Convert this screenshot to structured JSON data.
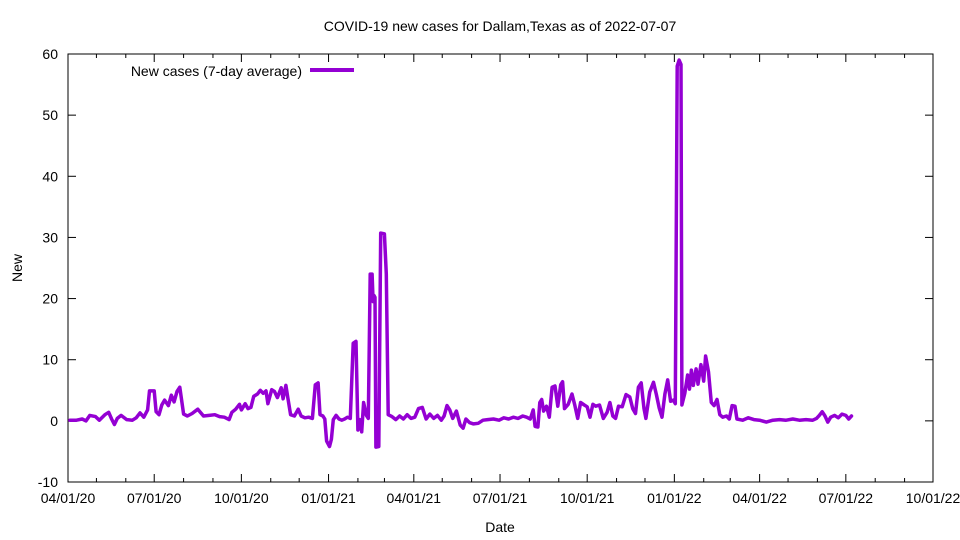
{
  "chart_data": {
    "type": "line",
    "title": "COVID-19 new cases for Dallam,Texas as of 2022-07-07",
    "xlabel": "Date",
    "ylabel": "New",
    "xlim": [
      "2020-04-01",
      "2022-10-01"
    ],
    "ylim": [
      -10,
      60
    ],
    "x_ticks": [
      {
        "date": "2020-04-01",
        "label": "04/01/20"
      },
      {
        "date": "2020-07-01",
        "label": "07/01/20"
      },
      {
        "date": "2020-10-01",
        "label": "10/01/20"
      },
      {
        "date": "2021-01-01",
        "label": "01/01/21"
      },
      {
        "date": "2021-04-01",
        "label": "04/01/21"
      },
      {
        "date": "2021-07-01",
        "label": "07/01/21"
      },
      {
        "date": "2021-10-01",
        "label": "10/01/21"
      },
      {
        "date": "2022-01-01",
        "label": "01/01/22"
      },
      {
        "date": "2022-04-01",
        "label": "04/01/22"
      },
      {
        "date": "2022-07-01",
        "label": "07/01/22"
      },
      {
        "date": "2022-10-01",
        "label": "10/01/22"
      }
    ],
    "y_ticks": [
      -10,
      0,
      10,
      20,
      30,
      40,
      50,
      60
    ],
    "grid": false,
    "legend_position": "top-left",
    "series": [
      {
        "name": "New cases (7-day average)",
        "color": "#9400d3",
        "points": [
          [
            "2020-04-03",
            0.1
          ],
          [
            "2020-04-10",
            0.1
          ],
          [
            "2020-04-16",
            0.3
          ],
          [
            "2020-04-20",
            0.0
          ],
          [
            "2020-04-24",
            0.9
          ],
          [
            "2020-04-30",
            0.7
          ],
          [
            "2020-05-04",
            0.1
          ],
          [
            "2020-05-10",
            1.0
          ],
          [
            "2020-05-14",
            1.4
          ],
          [
            "2020-05-17",
            0.3
          ],
          [
            "2020-05-20",
            -0.6
          ],
          [
            "2020-05-23",
            0.4
          ],
          [
            "2020-05-27",
            0.9
          ],
          [
            "2020-06-02",
            0.2
          ],
          [
            "2020-06-08",
            0.1
          ],
          [
            "2020-06-12",
            0.5
          ],
          [
            "2020-06-16",
            1.3
          ],
          [
            "2020-06-20",
            0.6
          ],
          [
            "2020-06-24",
            1.8
          ],
          [
            "2020-06-26",
            4.9
          ],
          [
            "2020-07-01",
            4.9
          ],
          [
            "2020-07-03",
            1.5
          ],
          [
            "2020-07-06",
            1.0
          ],
          [
            "2020-07-09",
            2.6
          ],
          [
            "2020-07-12",
            3.4
          ],
          [
            "2020-07-16",
            2.5
          ],
          [
            "2020-07-19",
            4.2
          ],
          [
            "2020-07-22",
            3.1
          ],
          [
            "2020-07-25",
            4.8
          ],
          [
            "2020-07-28",
            5.5
          ],
          [
            "2020-08-01",
            1.1
          ],
          [
            "2020-08-05",
            0.8
          ],
          [
            "2020-08-10",
            1.2
          ],
          [
            "2020-08-16",
            1.9
          ],
          [
            "2020-08-22",
            0.8
          ],
          [
            "2020-08-28",
            0.9
          ],
          [
            "2020-09-03",
            1.0
          ],
          [
            "2020-09-08",
            0.7
          ],
          [
            "2020-09-13",
            0.6
          ],
          [
            "2020-09-18",
            0.2
          ],
          [
            "2020-09-21",
            1.4
          ],
          [
            "2020-09-25",
            1.9
          ],
          [
            "2020-09-29",
            2.7
          ],
          [
            "2020-10-01",
            1.8
          ],
          [
            "2020-10-05",
            2.8
          ],
          [
            "2020-10-08",
            2.0
          ],
          [
            "2020-10-11",
            2.2
          ],
          [
            "2020-10-14",
            4.0
          ],
          [
            "2020-10-18",
            4.4
          ],
          [
            "2020-10-21",
            5.0
          ],
          [
            "2020-10-24",
            4.5
          ],
          [
            "2020-10-27",
            4.9
          ],
          [
            "2020-10-29",
            2.8
          ],
          [
            "2020-11-02",
            5.1
          ],
          [
            "2020-11-05",
            4.8
          ],
          [
            "2020-11-08",
            3.8
          ],
          [
            "2020-11-12",
            5.4
          ],
          [
            "2020-11-14",
            3.6
          ],
          [
            "2020-11-17",
            5.8
          ],
          [
            "2020-11-19",
            3.8
          ],
          [
            "2020-11-22",
            1.0
          ],
          [
            "2020-11-26",
            0.8
          ],
          [
            "2020-11-30",
            1.9
          ],
          [
            "2020-12-03",
            0.8
          ],
          [
            "2020-12-07",
            0.5
          ],
          [
            "2020-12-11",
            0.6
          ],
          [
            "2020-12-15",
            0.4
          ],
          [
            "2020-12-18",
            5.9
          ],
          [
            "2020-12-21",
            6.2
          ],
          [
            "2020-12-23",
            1.0
          ],
          [
            "2020-12-26",
            0.8
          ],
          [
            "2020-12-28",
            0.3
          ],
          [
            "2020-12-30",
            -3.3
          ],
          [
            "2021-01-02",
            -4.2
          ],
          [
            "2021-01-04",
            -3.0
          ],
          [
            "2021-01-06",
            0.2
          ],
          [
            "2021-01-09",
            0.9
          ],
          [
            "2021-01-12",
            0.3
          ],
          [
            "2021-01-15",
            0.1
          ],
          [
            "2021-01-18",
            0.3
          ],
          [
            "2021-01-21",
            0.6
          ],
          [
            "2021-01-24",
            0.4
          ],
          [
            "2021-01-27",
            12.7
          ],
          [
            "2021-01-30",
            13.0
          ],
          [
            "2021-02-01",
            -1.5
          ],
          [
            "2021-02-03",
            0.2
          ],
          [
            "2021-02-05",
            -1.8
          ],
          [
            "2021-02-07",
            3.0
          ],
          [
            "2021-02-10",
            0.9
          ],
          [
            "2021-02-12",
            0.4
          ],
          [
            "2021-02-14",
            24.0
          ],
          [
            "2021-02-16",
            24.0
          ],
          [
            "2021-02-17",
            19.5
          ],
          [
            "2021-02-18",
            20.5
          ],
          [
            "2021-02-19",
            20.2
          ],
          [
            "2021-02-20",
            -4.3
          ],
          [
            "2021-02-23",
            -4.2
          ],
          [
            "2021-02-25",
            30.7
          ],
          [
            "2021-03-01",
            30.6
          ],
          [
            "2021-03-03",
            24.0
          ],
          [
            "2021-03-05",
            1.0
          ],
          [
            "2021-03-09",
            0.7
          ],
          [
            "2021-03-13",
            0.2
          ],
          [
            "2021-03-17",
            0.8
          ],
          [
            "2021-03-21",
            0.3
          ],
          [
            "2021-03-25",
            1.0
          ],
          [
            "2021-03-29",
            0.4
          ],
          [
            "2021-04-02",
            0.6
          ],
          [
            "2021-04-06",
            2.0
          ],
          [
            "2021-04-10",
            2.2
          ],
          [
            "2021-04-14",
            0.3
          ],
          [
            "2021-04-18",
            1.1
          ],
          [
            "2021-04-22",
            0.4
          ],
          [
            "2021-04-26",
            0.9
          ],
          [
            "2021-04-30",
            0.1
          ],
          [
            "2021-05-03",
            0.8
          ],
          [
            "2021-05-06",
            2.5
          ],
          [
            "2021-05-09",
            1.8
          ],
          [
            "2021-05-12",
            0.4
          ],
          [
            "2021-05-16",
            1.6
          ],
          [
            "2021-05-20",
            -0.7
          ],
          [
            "2021-05-23",
            -1.2
          ],
          [
            "2021-05-26",
            0.3
          ],
          [
            "2021-05-30",
            -0.3
          ],
          [
            "2021-06-03",
            -0.5
          ],
          [
            "2021-06-08",
            -0.4
          ],
          [
            "2021-06-13",
            0.1
          ],
          [
            "2021-06-18",
            0.2
          ],
          [
            "2021-06-24",
            0.3
          ],
          [
            "2021-06-30",
            0.1
          ],
          [
            "2021-07-05",
            0.5
          ],
          [
            "2021-07-10",
            0.3
          ],
          [
            "2021-07-15",
            0.6
          ],
          [
            "2021-07-20",
            0.4
          ],
          [
            "2021-07-25",
            0.8
          ],
          [
            "2021-07-29",
            0.6
          ],
          [
            "2021-08-02",
            0.3
          ],
          [
            "2021-08-05",
            1.8
          ],
          [
            "2021-08-07",
            -0.9
          ],
          [
            "2021-08-10",
            -1.0
          ],
          [
            "2021-08-12",
            3.0
          ],
          [
            "2021-08-14",
            3.5
          ],
          [
            "2021-08-16",
            1.6
          ],
          [
            "2021-08-19",
            2.4
          ],
          [
            "2021-08-22",
            0.6
          ],
          [
            "2021-08-25",
            5.5
          ],
          [
            "2021-08-28",
            5.7
          ],
          [
            "2021-08-31",
            2.4
          ],
          [
            "2021-09-03",
            5.9
          ],
          [
            "2021-09-05",
            6.4
          ],
          [
            "2021-09-07",
            2.0
          ],
          [
            "2021-09-11",
            2.7
          ],
          [
            "2021-09-15",
            4.4
          ],
          [
            "2021-09-18",
            2.5
          ],
          [
            "2021-09-21",
            0.4
          ],
          [
            "2021-09-24",
            3.0
          ],
          [
            "2021-09-28",
            2.6
          ],
          [
            "2021-10-01",
            2.3
          ],
          [
            "2021-10-04",
            0.6
          ],
          [
            "2021-10-07",
            2.7
          ],
          [
            "2021-10-10",
            2.4
          ],
          [
            "2021-10-14",
            2.6
          ],
          [
            "2021-10-18",
            0.4
          ],
          [
            "2021-10-22",
            1.4
          ],
          [
            "2021-10-25",
            3.0
          ],
          [
            "2021-10-28",
            0.8
          ],
          [
            "2021-10-31",
            0.4
          ],
          [
            "2021-11-03",
            2.4
          ],
          [
            "2021-11-07",
            2.3
          ],
          [
            "2021-11-11",
            4.3
          ],
          [
            "2021-11-15",
            3.9
          ],
          [
            "2021-11-18",
            2.0
          ],
          [
            "2021-11-21",
            1.2
          ],
          [
            "2021-11-24",
            5.5
          ],
          [
            "2021-11-27",
            6.2
          ],
          [
            "2021-11-30",
            2.0
          ],
          [
            "2021-12-02",
            0.4
          ],
          [
            "2021-12-06",
            4.7
          ],
          [
            "2021-12-10",
            6.3
          ],
          [
            "2021-12-13",
            4.3
          ],
          [
            "2021-12-16",
            2.1
          ],
          [
            "2021-12-19",
            0.6
          ],
          [
            "2021-12-22",
            4.4
          ],
          [
            "2021-12-25",
            6.7
          ],
          [
            "2021-12-28",
            3.2
          ],
          [
            "2021-12-31",
            3.4
          ],
          [
            "2022-01-02",
            2.8
          ],
          [
            "2022-01-04",
            58.0
          ],
          [
            "2022-01-06",
            59.0
          ],
          [
            "2022-01-08",
            58.3
          ],
          [
            "2022-01-09",
            2.6
          ],
          [
            "2022-01-12",
            4.5
          ],
          [
            "2022-01-15",
            7.5
          ],
          [
            "2022-01-17",
            5.2
          ],
          [
            "2022-01-19",
            8.3
          ],
          [
            "2022-01-21",
            5.8
          ],
          [
            "2022-01-24",
            8.5
          ],
          [
            "2022-01-26",
            6.0
          ],
          [
            "2022-01-29",
            9.2
          ],
          [
            "2022-02-01",
            6.5
          ],
          [
            "2022-02-03",
            10.6
          ],
          [
            "2022-02-06",
            8.0
          ],
          [
            "2022-02-09",
            3.0
          ],
          [
            "2022-02-12",
            2.5
          ],
          [
            "2022-02-15",
            3.5
          ],
          [
            "2022-02-18",
            1.0
          ],
          [
            "2022-02-21",
            0.6
          ],
          [
            "2022-02-25",
            0.8
          ],
          [
            "2022-02-28",
            0.3
          ],
          [
            "2022-03-03",
            2.5
          ],
          [
            "2022-03-06",
            2.4
          ],
          [
            "2022-03-08",
            0.3
          ],
          [
            "2022-03-14",
            0.1
          ],
          [
            "2022-03-20",
            0.5
          ],
          [
            "2022-03-26",
            0.2
          ],
          [
            "2022-04-01",
            0.1
          ],
          [
            "2022-04-08",
            -0.2
          ],
          [
            "2022-04-15",
            0.1
          ],
          [
            "2022-04-22",
            0.2
          ],
          [
            "2022-04-29",
            0.1
          ],
          [
            "2022-05-06",
            0.3
          ],
          [
            "2022-05-13",
            0.1
          ],
          [
            "2022-05-20",
            0.2
          ],
          [
            "2022-05-27",
            0.1
          ],
          [
            "2022-05-31",
            0.4
          ],
          [
            "2022-06-03",
            0.9
          ],
          [
            "2022-06-06",
            1.5
          ],
          [
            "2022-06-09",
            0.8
          ],
          [
            "2022-06-12",
            -0.2
          ],
          [
            "2022-06-15",
            0.6
          ],
          [
            "2022-06-19",
            0.9
          ],
          [
            "2022-06-23",
            0.5
          ],
          [
            "2022-06-27",
            1.1
          ],
          [
            "2022-07-01",
            0.9
          ],
          [
            "2022-07-04",
            0.3
          ],
          [
            "2022-07-07",
            0.8
          ]
        ]
      }
    ]
  }
}
